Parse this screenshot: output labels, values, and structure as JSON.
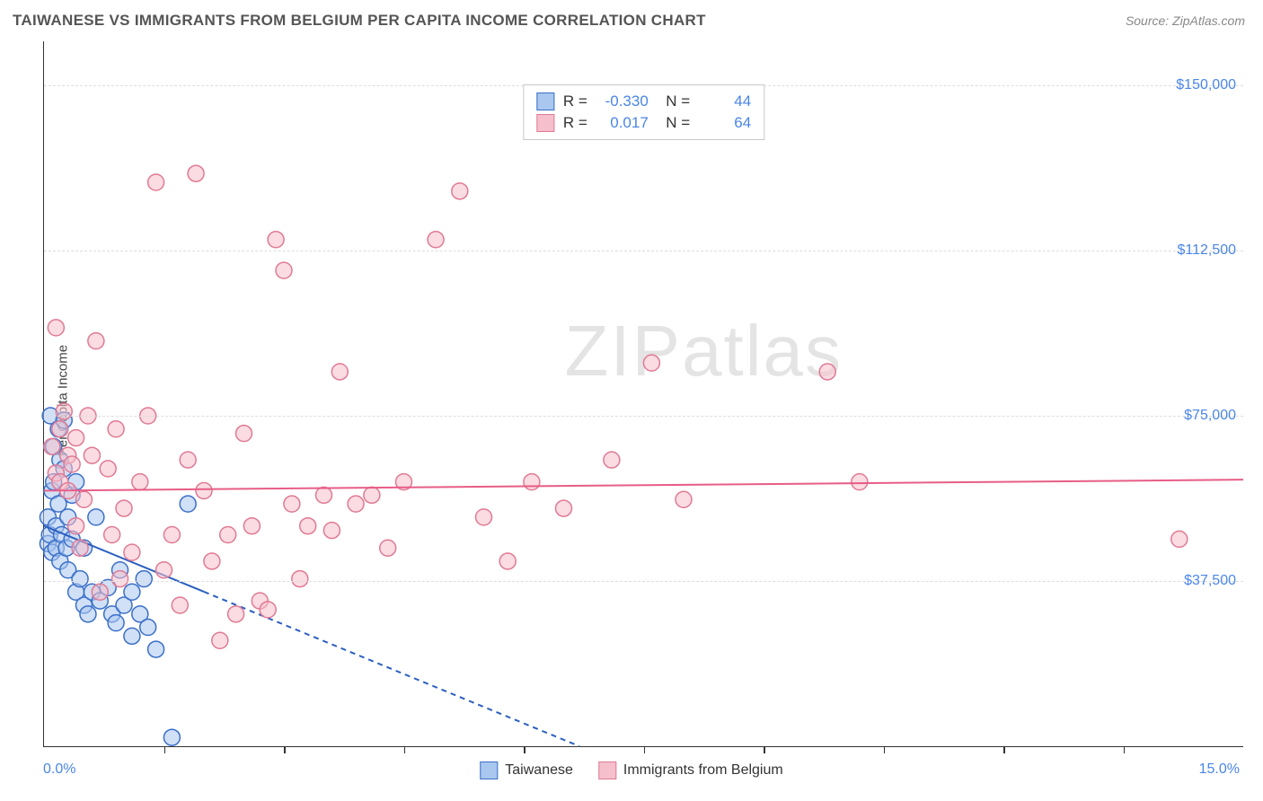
{
  "header": {
    "title": "TAIWANESE VS IMMIGRANTS FROM BELGIUM PER CAPITA INCOME CORRELATION CHART",
    "source": "Source: ZipAtlas.com"
  },
  "watermark": "ZIPatlas",
  "chart": {
    "type": "scatter",
    "y_label": "Per Capita Income",
    "background_color": "#ffffff",
    "grid_color": "#dddddd",
    "axis_color": "#333333",
    "label_color": "#4a86e8",
    "xlim": [
      0,
      15
    ],
    "ylim": [
      0,
      160000
    ],
    "x_ticks": [
      1.5,
      3.0,
      4.5,
      6.0,
      7.5,
      9.0,
      10.5,
      12.0,
      13.5
    ],
    "x_axis_labels": {
      "left": "0.0%",
      "right": "15.0%"
    },
    "y_gridlines": [
      {
        "value": 37500,
        "label": "$37,500"
      },
      {
        "value": 75000,
        "label": "$75,000"
      },
      {
        "value": 112500,
        "label": "$112,500"
      },
      {
        "value": 150000,
        "label": "$150,000"
      }
    ],
    "marker_radius": 9,
    "marker_stroke_width": 1.5,
    "series": [
      {
        "name": "Taiwanese",
        "fill": "#a9c7ef",
        "stroke": "#3b6fc9",
        "fill_opacity": 0.55,
        "trend": {
          "start_y": 50000,
          "end_y": -62000,
          "color": "#2a5fc0",
          "width": 2,
          "dash_after_x": 2.0
        },
        "stats": {
          "R": "-0.330",
          "N": "44"
        },
        "points": [
          [
            0.05,
            46000
          ],
          [
            0.05,
            52000
          ],
          [
            0.07,
            48000
          ],
          [
            0.08,
            75000
          ],
          [
            0.1,
            58000
          ],
          [
            0.1,
            44000
          ],
          [
            0.12,
            60000
          ],
          [
            0.12,
            68000
          ],
          [
            0.15,
            50000
          ],
          [
            0.15,
            45000
          ],
          [
            0.18,
            72000
          ],
          [
            0.18,
            55000
          ],
          [
            0.2,
            42000
          ],
          [
            0.2,
            65000
          ],
          [
            0.22,
            48000
          ],
          [
            0.25,
            63000
          ],
          [
            0.25,
            74000
          ],
          [
            0.28,
            45000
          ],
          [
            0.3,
            52000
          ],
          [
            0.3,
            40000
          ],
          [
            0.35,
            57000
          ],
          [
            0.35,
            47000
          ],
          [
            0.4,
            60000
          ],
          [
            0.4,
            35000
          ],
          [
            0.45,
            38000
          ],
          [
            0.5,
            45000
          ],
          [
            0.5,
            32000
          ],
          [
            0.55,
            30000
          ],
          [
            0.6,
            35000
          ],
          [
            0.65,
            52000
          ],
          [
            0.7,
            33000
          ],
          [
            0.8,
            36000
          ],
          [
            0.85,
            30000
          ],
          [
            0.9,
            28000
          ],
          [
            0.95,
            40000
          ],
          [
            1.0,
            32000
          ],
          [
            1.1,
            35000
          ],
          [
            1.1,
            25000
          ],
          [
            1.2,
            30000
          ],
          [
            1.25,
            38000
          ],
          [
            1.3,
            27000
          ],
          [
            1.4,
            22000
          ],
          [
            1.6,
            2000
          ],
          [
            1.8,
            55000
          ]
        ]
      },
      {
        "name": "Immigrants from Belgium",
        "fill": "#f5bfcb",
        "stroke": "#e07a94",
        "fill_opacity": 0.55,
        "trend": {
          "start_y": 58000,
          "end_y": 60500,
          "color": "#e75d86",
          "width": 2,
          "dash_after_x": null
        },
        "stats": {
          "R": "0.017",
          "N": "64"
        },
        "points": [
          [
            0.1,
            68000
          ],
          [
            0.15,
            95000
          ],
          [
            0.15,
            62000
          ],
          [
            0.2,
            60000
          ],
          [
            0.2,
            72000
          ],
          [
            0.25,
            76000
          ],
          [
            0.3,
            66000
          ],
          [
            0.3,
            58000
          ],
          [
            0.35,
            64000
          ],
          [
            0.4,
            70000
          ],
          [
            0.4,
            50000
          ],
          [
            0.45,
            45000
          ],
          [
            0.5,
            56000
          ],
          [
            0.55,
            75000
          ],
          [
            0.6,
            66000
          ],
          [
            0.65,
            92000
          ],
          [
            0.7,
            35000
          ],
          [
            0.8,
            63000
          ],
          [
            0.85,
            48000
          ],
          [
            0.9,
            72000
          ],
          [
            0.95,
            38000
          ],
          [
            1.0,
            54000
          ],
          [
            1.1,
            44000
          ],
          [
            1.2,
            60000
          ],
          [
            1.3,
            75000
          ],
          [
            1.4,
            128000
          ],
          [
            1.5,
            40000
          ],
          [
            1.6,
            48000
          ],
          [
            1.7,
            32000
          ],
          [
            1.8,
            65000
          ],
          [
            1.9,
            130000
          ],
          [
            2.0,
            58000
          ],
          [
            2.1,
            42000
          ],
          [
            2.2,
            24000
          ],
          [
            2.3,
            48000
          ],
          [
            2.4,
            30000
          ],
          [
            2.5,
            71000
          ],
          [
            2.6,
            50000
          ],
          [
            2.7,
            33000
          ],
          [
            2.8,
            31000
          ],
          [
            2.9,
            115000
          ],
          [
            3.0,
            108000
          ],
          [
            3.1,
            55000
          ],
          [
            3.2,
            38000
          ],
          [
            3.3,
            50000
          ],
          [
            3.5,
            57000
          ],
          [
            3.7,
            85000
          ],
          [
            3.9,
            55000
          ],
          [
            4.1,
            57000
          ],
          [
            4.3,
            45000
          ],
          [
            4.5,
            60000
          ],
          [
            4.9,
            115000
          ],
          [
            5.2,
            126000
          ],
          [
            5.5,
            52000
          ],
          [
            5.8,
            42000
          ],
          [
            6.1,
            60000
          ],
          [
            6.5,
            54000
          ],
          [
            7.1,
            65000
          ],
          [
            7.6,
            87000
          ],
          [
            8.0,
            56000
          ],
          [
            9.8,
            85000
          ],
          [
            10.2,
            60000
          ],
          [
            14.2,
            47000
          ],
          [
            3.6,
            49000
          ]
        ]
      }
    ]
  },
  "bottom_legend": [
    {
      "label": "Taiwanese",
      "fill": "#a9c7ef",
      "stroke": "#3b6fc9"
    },
    {
      "label": "Immigrants from Belgium",
      "fill": "#f5bfcb",
      "stroke": "#e07a94"
    }
  ]
}
